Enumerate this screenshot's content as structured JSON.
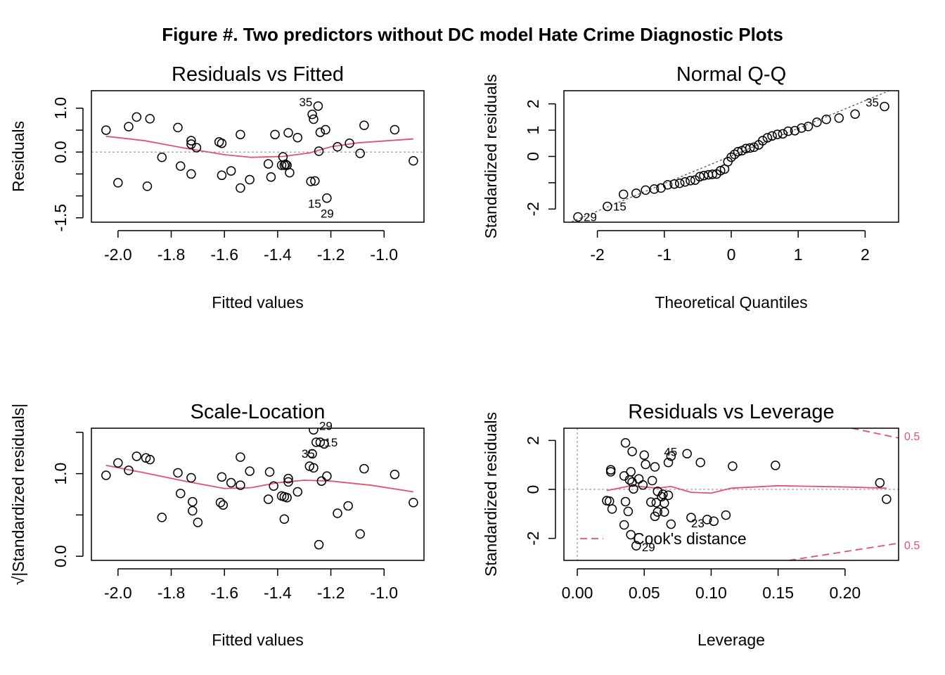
{
  "figure_title": "Figure #. Two predictors without DC model Hate Crime Diagnostic Plots",
  "colors": {
    "points": "#000000",
    "smooth": "#DF536B",
    "reference": "#9E9E9E",
    "qqline": "#555555"
  },
  "chart_data": [
    {
      "id": "rvf",
      "type": "scatter",
      "title": "Residuals vs Fitted",
      "xlabel": "Fitted values",
      "ylabel": "Residuals",
      "xlim": [
        -2.1,
        -0.85
      ],
      "ylim": [
        -1.6,
        1.4
      ],
      "xticks": [
        -2.0,
        -1.8,
        -1.6,
        -1.4,
        -1.2,
        -1.0
      ],
      "xtick_labels": [
        "-2.0",
        "-1.8",
        "-1.6",
        "-1.4",
        "-1.2",
        "-1.0"
      ],
      "yticks": [
        -1.5,
        -1.0,
        -0.5,
        0.0,
        0.5,
        1.0
      ],
      "ytick_labels": [
        "-1.5",
        "",
        "",
        "0.0",
        "",
        "1.0"
      ],
      "hline": 0,
      "points": [
        [
          -2.045,
          0.5
        ],
        [
          -2.0,
          -0.7
        ],
        [
          -1.96,
          0.58
        ],
        [
          -1.93,
          0.8
        ],
        [
          -1.89,
          -0.78
        ],
        [
          -1.88,
          0.76
        ],
        [
          -1.835,
          -0.12
        ],
        [
          -1.775,
          0.56
        ],
        [
          -1.765,
          -0.32
        ],
        [
          -1.725,
          0.26
        ],
        [
          -1.725,
          0.18
        ],
        [
          -1.725,
          -0.5
        ],
        [
          -1.705,
          0.1
        ],
        [
          -1.62,
          0.23
        ],
        [
          -1.61,
          0.2
        ],
        [
          -1.61,
          -0.53
        ],
        [
          -1.575,
          -0.43
        ],
        [
          -1.54,
          -0.82
        ],
        [
          -1.54,
          0.4
        ],
        [
          -1.505,
          -0.63
        ],
        [
          -1.435,
          -0.27
        ],
        [
          -1.425,
          -0.57
        ],
        [
          -1.41,
          0.4
        ],
        [
          -1.385,
          -0.3
        ],
        [
          -1.38,
          -0.11
        ],
        [
          -1.375,
          -0.3
        ],
        [
          -1.37,
          -0.28
        ],
        [
          -1.365,
          -0.3
        ],
        [
          -1.36,
          0.44
        ],
        [
          -1.355,
          -0.47
        ],
        [
          -1.325,
          0.33
        ],
        [
          -1.275,
          -0.67
        ],
        [
          -1.27,
          0.86
        ],
        [
          -1.265,
          0.75
        ],
        [
          -1.26,
          -0.66
        ],
        [
          -1.248,
          1.05
        ],
        [
          -1.245,
          0.02
        ],
        [
          -1.24,
          0.45
        ],
        [
          -1.22,
          0.51
        ],
        [
          -1.215,
          -1.05
        ],
        [
          -1.175,
          0.12
        ],
        [
          -1.13,
          0.2
        ],
        [
          -1.09,
          -0.03
        ],
        [
          -1.075,
          0.61
        ],
        [
          -0.96,
          0.51
        ],
        [
          -0.89,
          -0.2
        ]
      ],
      "smooth": [
        [
          -2.045,
          0.36
        ],
        [
          -1.9,
          0.26
        ],
        [
          -1.75,
          0.09
        ],
        [
          -1.6,
          -0.06
        ],
        [
          -1.5,
          -0.12
        ],
        [
          -1.38,
          -0.1
        ],
        [
          -1.28,
          -0.02
        ],
        [
          -1.2,
          0.12
        ],
        [
          -1.1,
          0.21
        ],
        [
          -0.89,
          0.3
        ]
      ],
      "annotations": [
        {
          "label": "35",
          "x": -1.248,
          "y": 1.05
        },
        {
          "label": "15",
          "x": -1.215,
          "y": -1.05
        },
        {
          "label": "29",
          "x": -1.26,
          "y": -1.3
        }
      ]
    },
    {
      "id": "qq",
      "type": "scatter",
      "title": "Normal Q-Q",
      "xlabel": "Theoretical Quantiles",
      "ylabel": "Standardized residuals",
      "xlim": [
        -2.5,
        2.5
      ],
      "ylim": [
        -2.5,
        2.5
      ],
      "xticks": [
        -2,
        -1,
        0,
        1,
        2
      ],
      "xtick_labels": [
        "-2",
        "-1",
        "0",
        "1",
        "2"
      ],
      "yticks": [
        -2,
        -1,
        0,
        1,
        2
      ],
      "ytick_labels": [
        "-2",
        "",
        "0",
        "1",
        "2"
      ],
      "points": [
        [
          -2.29,
          -2.3
        ],
        [
          -1.85,
          -1.9
        ],
        [
          -1.61,
          -1.44
        ],
        [
          -1.42,
          -1.4
        ],
        [
          -1.28,
          -1.28
        ],
        [
          -1.15,
          -1.24
        ],
        [
          -1.05,
          -1.2
        ],
        [
          -0.95,
          -1.08
        ],
        [
          -0.85,
          -1.05
        ],
        [
          -0.77,
          -1.02
        ],
        [
          -0.69,
          -0.97
        ],
        [
          -0.61,
          -0.92
        ],
        [
          -0.54,
          -0.9
        ],
        [
          -0.47,
          -0.77
        ],
        [
          -0.41,
          -0.73
        ],
        [
          -0.34,
          -0.7
        ],
        [
          -0.28,
          -0.68
        ],
        [
          -0.22,
          -0.67
        ],
        [
          -0.16,
          -0.54
        ],
        [
          -0.1,
          -0.48
        ],
        [
          -0.05,
          -0.2
        ],
        [
          0.0,
          -0.03
        ],
        [
          0.05,
          0.08
        ],
        [
          0.1,
          0.18
        ],
        [
          0.16,
          0.22
        ],
        [
          0.22,
          0.3
        ],
        [
          0.28,
          0.32
        ],
        [
          0.34,
          0.35
        ],
        [
          0.41,
          0.44
        ],
        [
          0.47,
          0.6
        ],
        [
          0.54,
          0.71
        ],
        [
          0.61,
          0.78
        ],
        [
          0.69,
          0.84
        ],
        [
          0.77,
          0.86
        ],
        [
          0.85,
          0.96
        ],
        [
          0.95,
          0.98
        ],
        [
          1.05,
          1.08
        ],
        [
          1.15,
          1.14
        ],
        [
          1.28,
          1.3
        ],
        [
          1.42,
          1.41
        ],
        [
          1.61,
          1.46
        ],
        [
          1.85,
          1.61
        ],
        [
          2.29,
          1.9
        ]
      ],
      "refline": {
        "slope": 1.05,
        "intercept": 0.02
      },
      "annotations": [
        {
          "label": "29",
          "x": -2.29,
          "y": -2.3
        },
        {
          "label": "15",
          "x": -1.85,
          "y": -1.9
        },
        {
          "label": "35",
          "x": 2.29,
          "y": 1.9
        }
      ]
    },
    {
      "id": "sl",
      "type": "scatter",
      "title": "Scale-Location",
      "xlabel": "Fitted values",
      "ylabel": "√|Standardized residuals|",
      "xlim": [
        -2.1,
        -0.85
      ],
      "ylim": [
        -0.05,
        1.55
      ],
      "xticks": [
        -2.0,
        -1.8,
        -1.6,
        -1.4,
        -1.2,
        -1.0
      ],
      "xtick_labels": [
        "-2.0",
        "-1.8",
        "-1.6",
        "-1.4",
        "-1.2",
        "-1.0"
      ],
      "yticks": [
        0.0,
        0.5,
        1.0,
        1.5
      ],
      "ytick_labels": [
        "0.0",
        "",
        "1.0",
        ""
      ],
      "points": [
        [
          -2.045,
          0.98
        ],
        [
          -2.0,
          1.13
        ],
        [
          -1.96,
          1.04
        ],
        [
          -1.93,
          1.21
        ],
        [
          -1.895,
          1.19
        ],
        [
          -1.88,
          1.17
        ],
        [
          -1.835,
          0.47
        ],
        [
          -1.775,
          1.01
        ],
        [
          -1.765,
          0.76
        ],
        [
          -1.725,
          0.95
        ],
        [
          -1.72,
          0.66
        ],
        [
          -1.72,
          0.55
        ],
        [
          -1.7,
          0.41
        ],
        [
          -1.615,
          0.65
        ],
        [
          -1.61,
          0.96
        ],
        [
          -1.605,
          0.62
        ],
        [
          -1.575,
          0.89
        ],
        [
          -1.54,
          1.2
        ],
        [
          -1.54,
          0.86
        ],
        [
          -1.505,
          1.03
        ],
        [
          -1.435,
          0.69
        ],
        [
          -1.43,
          1.02
        ],
        [
          -1.415,
          0.85
        ],
        [
          -1.385,
          0.73
        ],
        [
          -1.375,
          0.45
        ],
        [
          -1.375,
          0.72
        ],
        [
          -1.365,
          0.71
        ],
        [
          -1.36,
          0.94
        ],
        [
          -1.36,
          0.9
        ],
        [
          -1.325,
          0.78
        ],
        [
          -1.28,
          1.09
        ],
        [
          -1.27,
          1.24
        ],
        [
          -1.265,
          1.07
        ],
        [
          -1.265,
          1.53
        ],
        [
          -1.255,
          1.38
        ],
        [
          -1.245,
          0.14
        ],
        [
          -1.24,
          1.38
        ],
        [
          -1.235,
          0.91
        ],
        [
          -1.225,
          1.36
        ],
        [
          -1.215,
          0.97
        ],
        [
          -1.175,
          0.52
        ],
        [
          -1.135,
          0.61
        ],
        [
          -1.09,
          0.27
        ],
        [
          -1.075,
          1.06
        ],
        [
          -0.96,
          0.99
        ],
        [
          -0.89,
          0.65
        ]
      ],
      "smooth": [
        [
          -2.045,
          1.1
        ],
        [
          -1.9,
          1.01
        ],
        [
          -1.75,
          0.91
        ],
        [
          -1.6,
          0.82
        ],
        [
          -1.5,
          0.83
        ],
        [
          -1.4,
          0.89
        ],
        [
          -1.3,
          0.92
        ],
        [
          -1.2,
          0.91
        ],
        [
          -1.05,
          0.86
        ],
        [
          -0.89,
          0.78
        ]
      ],
      "annotations": [
        {
          "label": "29",
          "x": -1.265,
          "y": 1.53
        },
        {
          "label": "35",
          "x": -1.255,
          "y": 1.38
        },
        {
          "label": "15",
          "x": -1.24,
          "y": 1.38
        }
      ]
    },
    {
      "id": "rvl",
      "type": "scatter",
      "title": "Residuals vs Leverage",
      "xlabel": "Leverage",
      "ylabel": "Standardized residuals",
      "xlim": [
        -0.01,
        0.24
      ],
      "ylim": [
        -2.9,
        2.5
      ],
      "xticks": [
        0.0,
        0.05,
        0.1,
        0.15,
        0.2
      ],
      "xtick_labels": [
        "0.00",
        "0.05",
        "0.10",
        "0.15",
        "0.20"
      ],
      "yticks": [
        -2,
        0,
        2
      ],
      "ytick_labels": [
        "-2",
        "0",
        "2"
      ],
      "hline": 0,
      "vline": 0,
      "points": [
        [
          0.036,
          1.9
        ],
        [
          0.041,
          1.55
        ],
        [
          0.068,
          1.1
        ],
        [
          0.07,
          1.36
        ],
        [
          0.082,
          1.46
        ],
        [
          0.092,
          1.1
        ],
        [
          0.116,
          0.95
        ],
        [
          0.148,
          0.98
        ],
        [
          0.05,
          1.4
        ],
        [
          0.051,
          1.02
        ],
        [
          0.058,
          0.92
        ],
        [
          0.025,
          0.8
        ],
        [
          0.025,
          0.72
        ],
        [
          0.035,
          0.55
        ],
        [
          0.04,
          0.72
        ],
        [
          0.039,
          0.39
        ],
        [
          0.041,
          0.3
        ],
        [
          0.046,
          0.43
        ],
        [
          0.049,
          0.18
        ],
        [
          0.056,
          0.36
        ],
        [
          0.042,
          0.02
        ],
        [
          0.06,
          -0.08
        ],
        [
          0.063,
          -0.3
        ],
        [
          0.064,
          -0.2
        ],
        [
          0.068,
          -0.24
        ],
        [
          0.065,
          -0.56
        ],
        [
          0.059,
          -0.54
        ],
        [
          0.055,
          -0.52
        ],
        [
          0.022,
          -0.46
        ],
        [
          0.024,
          -0.48
        ],
        [
          0.026,
          -0.8
        ],
        [
          0.038,
          -0.9
        ],
        [
          0.06,
          -0.92
        ],
        [
          0.065,
          -0.92
        ],
        [
          0.036,
          -0.5
        ],
        [
          0.058,
          -1.1
        ],
        [
          0.035,
          -1.45
        ],
        [
          0.07,
          -1.42
        ],
        [
          0.085,
          -1.15
        ],
        [
          0.097,
          -1.23
        ],
        [
          0.102,
          -1.3
        ],
        [
          0.111,
          -1.05
        ],
        [
          0.04,
          -1.85
        ],
        [
          0.044,
          -2.3
        ],
        [
          0.226,
          0.27
        ],
        [
          0.231,
          -0.4
        ]
      ],
      "smooth": [
        [
          0.022,
          -0.05
        ],
        [
          0.04,
          0.15
        ],
        [
          0.06,
          0.05
        ],
        [
          0.07,
          0.12
        ],
        [
          0.085,
          -0.12
        ],
        [
          0.1,
          -0.15
        ],
        [
          0.115,
          0.05
        ],
        [
          0.15,
          0.15
        ],
        [
          0.2,
          0.1
        ],
        [
          0.231,
          0.05
        ]
      ],
      "cooks_level": "0.5",
      "cooks_upper": [
        [
          0.205,
          2.5
        ],
        [
          0.24,
          2.1
        ]
      ],
      "cooks_lower": [
        [
          0.158,
          -2.9
        ],
        [
          0.24,
          -2.2
        ]
      ],
      "legend_label": "Cook's distance",
      "annotations": [
        {
          "label": "45",
          "x": 0.07,
          "y": 1.36
        },
        {
          "label": "23",
          "x": 0.085,
          "y": -1.15
        },
        {
          "label": "29",
          "x": 0.044,
          "y": -2.3
        }
      ]
    }
  ]
}
